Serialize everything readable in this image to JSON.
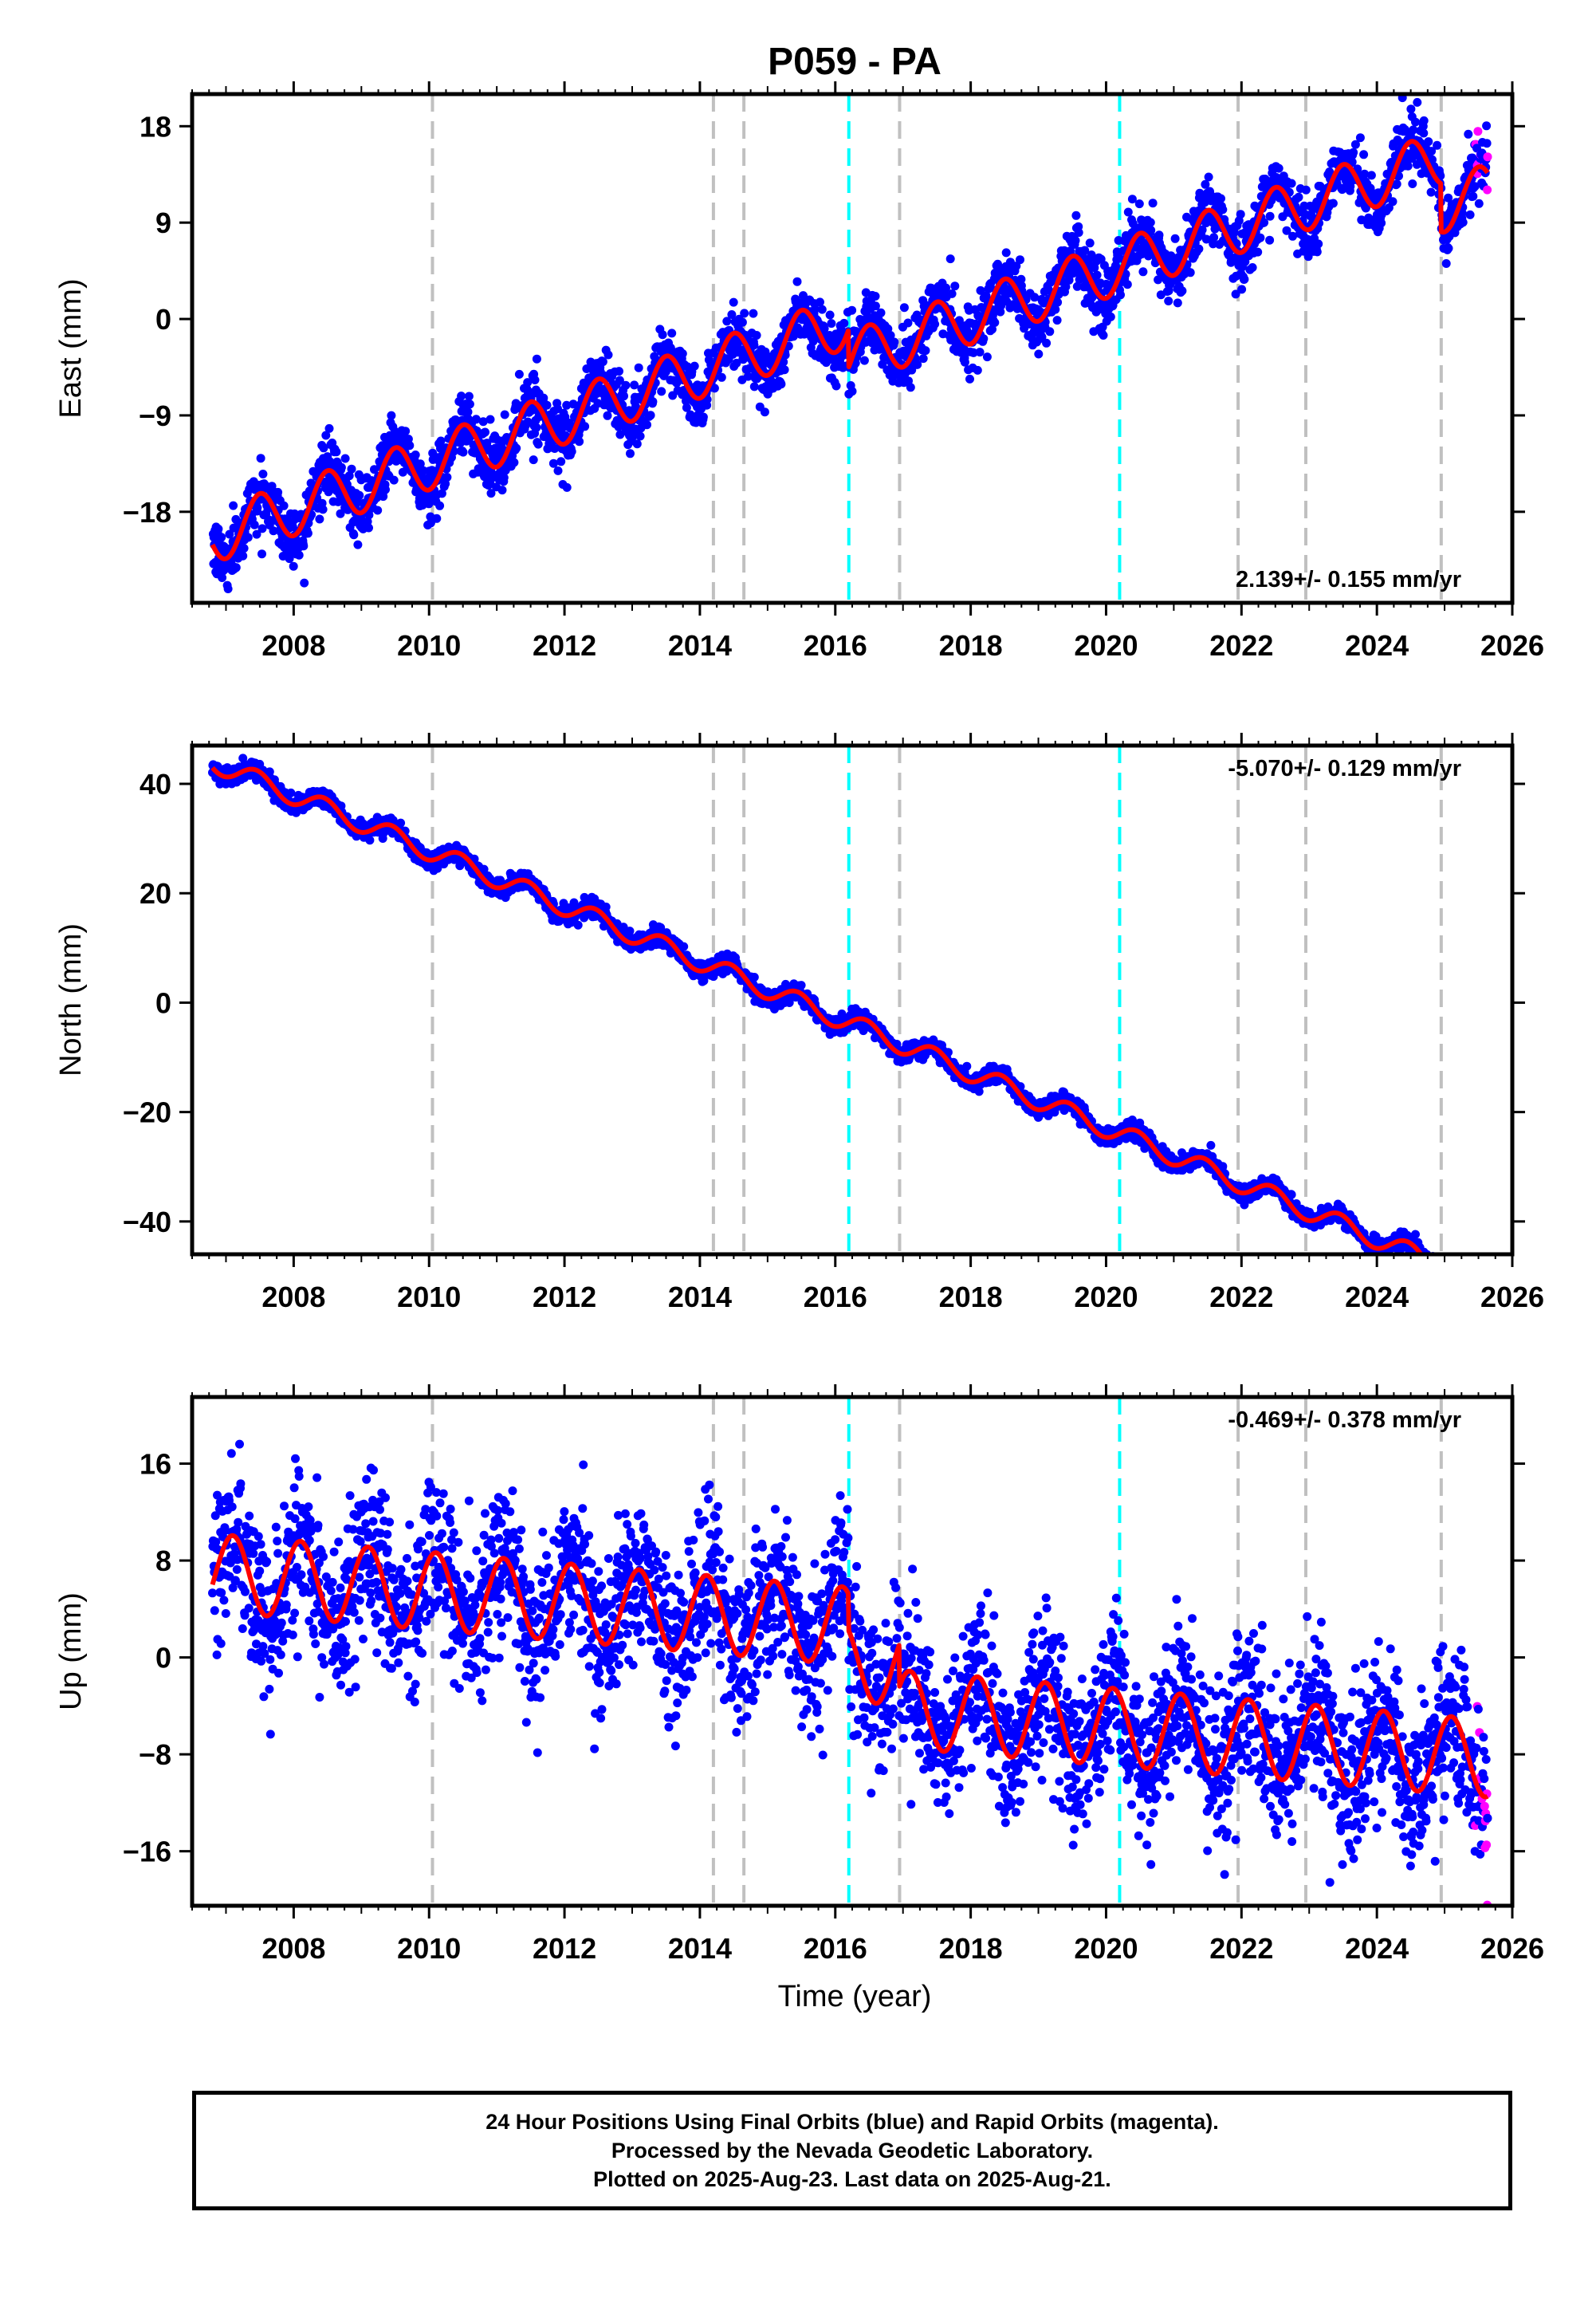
{
  "page": {
    "title": "P059 - PA",
    "xlabel": "Time (year)"
  },
  "colors": {
    "final_orbits": "#0000ff",
    "rapid_orbits": "#ff00ff",
    "model_fit": "#ff0000",
    "equipment_change_lines": "#c0c0c0",
    "earthquake_lines": "#00ffff"
  },
  "footer": {
    "line1": "24 Hour Positions Using Final Orbits (blue) and Rapid Orbits (magenta).",
    "line2": "Processed by the Nevada Geodetic Laboratory.",
    "line3": "Plotted on 2025-Aug-23. Last data on 2025-Aug-21."
  },
  "chart_data": [
    {
      "type": "scatter",
      "panel": "east",
      "ylabel": "East (mm)",
      "rate_label": "2.139+/- 0.155 mm/yr",
      "rate_label_position": "bottom-right",
      "xlim": [
        2006.5,
        2026.0
      ],
      "ylim": [
        -26.5,
        21
      ],
      "xticks": [
        "2008",
        "2010",
        "2012",
        "2014",
        "2016",
        "2018",
        "2020",
        "2022",
        "2024",
        "2026"
      ],
      "yticks": [
        "18",
        "9",
        "0",
        "-9",
        "-18"
      ],
      "data_start": 2006.8,
      "data_end": 2025.64,
      "rapid_start": 2025.45,
      "trend_at_start": -20.3,
      "rate": 2.139,
      "offsets": [
        {
          "x": 2016.2,
          "value": -3.5
        },
        {
          "x": 2024.95,
          "value": -4.5
        }
      ],
      "annual_amplitude": 2.5,
      "annual_phase_year": 0.5,
      "noise": 1.4,
      "vlines_gray": [
        2010.05,
        2014.2,
        2014.65,
        2016.95,
        2021.95,
        2022.95,
        2024.95
      ],
      "vlines_cyan": [
        2016.2,
        2020.2
      ]
    },
    {
      "type": "scatter",
      "panel": "north",
      "ylabel": "North (mm)",
      "rate_label": "-5.070+/- 0.129 mm/yr",
      "rate_label_position": "top-right",
      "xlim": [
        2006.5,
        2026.0
      ],
      "ylim": [
        -46,
        47
      ],
      "xticks": [
        "2008",
        "2010",
        "2012",
        "2014",
        "2016",
        "2018",
        "2020",
        "2022",
        "2024",
        "2026"
      ],
      "yticks": [
        "40",
        "20",
        "0",
        "-20",
        "-40"
      ],
      "data_start": 2006.8,
      "data_end": 2025.64,
      "rapid_start": 2025.45,
      "trend_at_start": 44,
      "rate": -5.07,
      "offsets": [],
      "annual_amplitude": 1.8,
      "annual_phase_year": 0.45,
      "noise": 0.8,
      "vlines_gray": [
        2010.05,
        2014.2,
        2014.65,
        2016.95,
        2021.95,
        2022.95,
        2024.95
      ],
      "vlines_cyan": [
        2016.2,
        2020.2
      ]
    },
    {
      "type": "scatter",
      "panel": "up",
      "ylabel": "Up (mm)",
      "rate_label": "-0.469+/- 0.378 mm/yr",
      "rate_label_position": "top-right",
      "xlim": [
        2006.5,
        2026.0
      ],
      "ylim": [
        -20.5,
        21.5
      ],
      "xticks": [
        "2008",
        "2010",
        "2012",
        "2014",
        "2016",
        "2018",
        "2020",
        "2022",
        "2024",
        "2026"
      ],
      "yticks": [
        "16",
        "8",
        "0",
        "-8",
        "-16"
      ],
      "data_start": 2006.8,
      "data_end": 2025.64,
      "rapid_start": 2025.45,
      "trend_at_start": 7,
      "rate": -0.469,
      "offsets": [
        {
          "x": 2016.2,
          "value": -3.0
        },
        {
          "x": 2016.95,
          "value": -3.5
        }
      ],
      "annual_amplitude": 3.2,
      "annual_phase_year": 0.1,
      "noise": 3.2,
      "vlines_gray": [
        2010.05,
        2014.2,
        2014.65,
        2016.95,
        2021.95,
        2022.95,
        2024.95
      ],
      "vlines_cyan": [
        2016.2,
        2020.2
      ]
    }
  ]
}
